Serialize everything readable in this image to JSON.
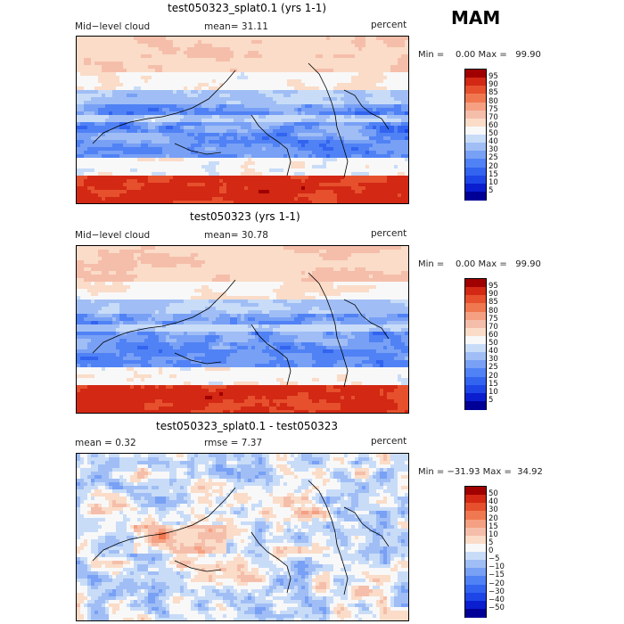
{
  "season": "MAM",
  "panels": [
    {
      "title": "test050323_splat0.1 (yrs 1-1)",
      "left_label": "Mid−level cloud",
      "mid_label": "mean=  31.11",
      "right_label": "percent",
      "minmax": "Min =    0.00 Max =   99.90",
      "kind": "abs",
      "colorbar_labels": [
        "95",
        "90",
        "85",
        "80",
        "75",
        "70",
        "60",
        "50",
        "40",
        "30",
        "25",
        "20",
        "15",
        "10",
        "5"
      ]
    },
    {
      "title": "test050323 (yrs 1-1)",
      "left_label": "Mid−level cloud",
      "mid_label": "mean=  30.78",
      "right_label": "percent",
      "minmax": "Min =    0.00 Max =   99.90",
      "kind": "abs",
      "colorbar_labels": [
        "95",
        "90",
        "85",
        "80",
        "75",
        "70",
        "60",
        "50",
        "40",
        "30",
        "25",
        "20",
        "15",
        "10",
        "5"
      ]
    },
    {
      "title": "test050323_splat0.1 - test050323",
      "left_label": "mean =    0.32",
      "mid_label": "rmse =    7.37",
      "right_label": "percent",
      "minmax": "Min = −31.93 Max =  34.92",
      "kind": "diff",
      "colorbar_labels": [
        "50",
        "40",
        "30",
        "20",
        "15",
        "10",
        "5",
        "0",
        "−5",
        "−10",
        "−15",
        "−20",
        "−30",
        "−40",
        "−50"
      ]
    }
  ],
  "colors": {
    "abs_scale": [
      "#000096",
      "#0a1ecf",
      "#1e46e6",
      "#3264f0",
      "#5082f5",
      "#78a0f5",
      "#a0bef5",
      "#c8dcf8",
      "#f8f8f8",
      "#fadcc8",
      "#f5beaa",
      "#f5a082",
      "#f07850",
      "#e6502d",
      "#d22814",
      "#a00000"
    ],
    "diff_scale": [
      "#000096",
      "#0a1ecf",
      "#1e46e6",
      "#3264f0",
      "#5082f5",
      "#78a0f5",
      "#a0bef5",
      "#c8dcf8",
      "#f8f8f8",
      "#fadcc8",
      "#f5beaa",
      "#f5a082",
      "#f07850",
      "#e6502d",
      "#d22814",
      "#a00000"
    ]
  }
}
